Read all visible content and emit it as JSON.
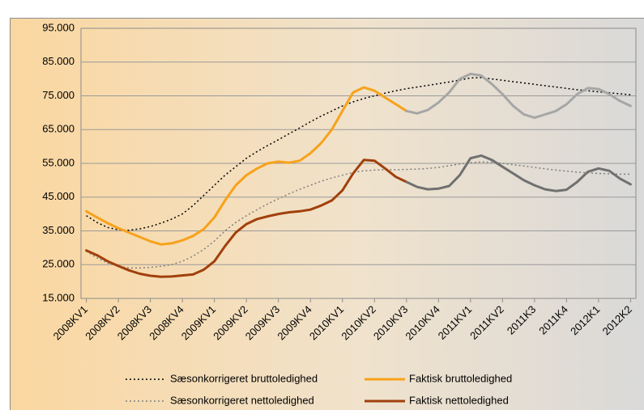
{
  "chart_data": {
    "type": "line",
    "categories": [
      "2008KV1",
      null,
      null,
      "2008KV2",
      null,
      null,
      "2008KV3",
      null,
      null,
      "2008KV4",
      null,
      null,
      "2009KV1",
      null,
      null,
      "2009KV2",
      null,
      null,
      "2009KV3",
      null,
      null,
      "2009KV4",
      null,
      null,
      "2010KV1",
      null,
      null,
      "2010KV2",
      null,
      null,
      "2010KV3",
      null,
      null,
      "2010KV4",
      null,
      null,
      "2011KV1",
      null,
      null,
      "2011KV2",
      null,
      null,
      "2011K3",
      null,
      null,
      "2011K4",
      null,
      null,
      "2012K1",
      null,
      null,
      "2012K2"
    ],
    "ylim": [
      15000,
      95000
    ],
    "yticks": [
      {
        "value": 15000,
        "label": "15.000"
      },
      {
        "value": 25000,
        "label": "25.000"
      },
      {
        "value": 35000,
        "label": "35.000"
      },
      {
        "value": 45000,
        "label": "45.000"
      },
      {
        "value": 55000,
        "label": "55.000"
      },
      {
        "value": 65000,
        "label": "65.000"
      },
      {
        "value": 75000,
        "label": "75.000"
      },
      {
        "value": 85000,
        "label": "85.000"
      },
      {
        "value": 95000,
        "label": "95.000"
      }
    ],
    "grid": true,
    "legend": "bottom",
    "series": [
      {
        "name": "Sæsonkorrigeret bruttoledighed",
        "color": "#000000",
        "dash": "dotted",
        "values": [
          39500,
          37500,
          36000,
          35300,
          35200,
          35600,
          36300,
          37300,
          38500,
          40000,
          42500,
          45500,
          48500,
          51500,
          54000,
          56500,
          58500,
          60300,
          62000,
          63800,
          65500,
          67300,
          69000,
          70500,
          72000,
          73200,
          74200,
          75000,
          75800,
          76500,
          77100,
          77600,
          78100,
          78600,
          79100,
          79700,
          80300,
          80400,
          80000,
          79600,
          79200,
          78800,
          78400,
          78000,
          77600,
          77200,
          76800,
          76500,
          76200,
          75900,
          75600,
          75300
        ]
      },
      {
        "name": "Faktisk bruttoledighed",
        "color": "#f7a21b",
        "later_color": "#a6a6a6",
        "split_at": 30,
        "values": [
          40800,
          39000,
          37300,
          35800,
          34500,
          33200,
          31900,
          31000,
          31300,
          32200,
          33500,
          35500,
          39000,
          44000,
          48500,
          51500,
          53500,
          55000,
          55500,
          55200,
          55800,
          58000,
          61000,
          65000,
          70500,
          76000,
          77500,
          76500,
          74500,
          72500,
          70500,
          69800,
          70800,
          73000,
          76000,
          80000,
          81500,
          81000,
          78500,
          75500,
          72000,
          69500,
          68500,
          69500,
          70500,
          72500,
          75500,
          77300,
          77000,
          75500,
          73500,
          72000
        ]
      },
      {
        "name": "Sæsonkorrigeret nettoledighed",
        "color": "#7f7f7f",
        "dash": "dotted",
        "values": [
          29000,
          27000,
          25500,
          24500,
          24000,
          24000,
          24200,
          24500,
          25000,
          26000,
          27500,
          29500,
          32000,
          35000,
          37500,
          39500,
          41300,
          43000,
          44500,
          46000,
          47300,
          48500,
          49700,
          50700,
          51500,
          52300,
          52800,
          53000,
          53100,
          53100,
          53200,
          53300,
          53500,
          53800,
          54300,
          54800,
          55200,
          55400,
          55300,
          55000,
          54600,
          54200,
          53800,
          53400,
          53000,
          52700,
          52400,
          52200,
          52000,
          51900,
          51800,
          51800
        ]
      },
      {
        "name": "Faktisk nettoledighed",
        "color": "#a0400c",
        "later_color": "#707070",
        "split_at": 30,
        "values": [
          29200,
          27800,
          26000,
          24600,
          23300,
          22300,
          21700,
          21400,
          21500,
          21800,
          22100,
          23500,
          26000,
          30500,
          34500,
          37000,
          38500,
          39300,
          40000,
          40500,
          40800,
          41300,
          42500,
          44000,
          47000,
          52000,
          56000,
          55800,
          53500,
          51000,
          49500,
          48000,
          47300,
          47500,
          48300,
          51500,
          56500,
          57300,
          56000,
          54000,
          52000,
          50000,
          48500,
          47300,
          46800,
          47200,
          49500,
          52500,
          53500,
          52800,
          50500,
          48800
        ]
      }
    ]
  }
}
